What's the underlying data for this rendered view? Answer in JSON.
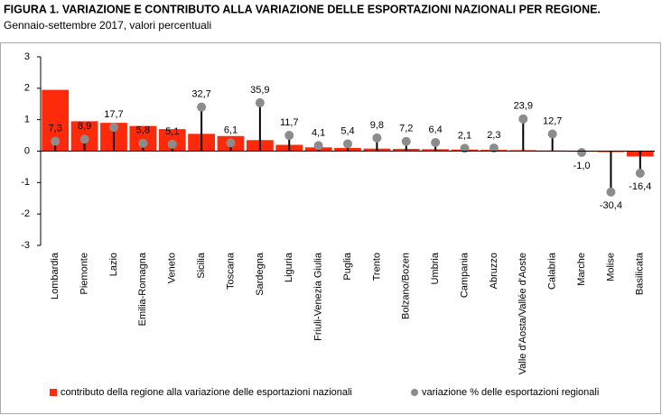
{
  "chart_data": {
    "type": "bar",
    "title": "FIGURA 1. VARIAZIONE E CONTRIBUTO ALLA VARIAZIONE DELLE ESPORTAZIONI NAZIONALI PER REGIONE.",
    "subtitle": "Gennaio-settembre 2017, valori percentuali",
    "categories": [
      "Lombardia",
      "Piemonte",
      "Lazio",
      "Emilia-Romagna",
      "Veneto",
      "Sicilia",
      "Toscana",
      "Sardegna",
      "Liguria",
      "Friuli-Venezia Giulia",
      "Puglia",
      "Trento",
      "Bolzano/Bozen",
      "Umbria",
      "Campania",
      "Abruzzo",
      "Valle d'Aosta/Vallée d'Aoste",
      "Calabria",
      "Marche",
      "Molise",
      "Basilicata"
    ],
    "series": [
      {
        "name": "contributo della regione alla variazione delle esportazioni nazionali",
        "type": "bar",
        "color": "#ff2a0a",
        "values": [
          1.95,
          0.95,
          0.9,
          0.8,
          0.7,
          0.55,
          0.48,
          0.35,
          0.2,
          0.12,
          0.1,
          0.08,
          0.07,
          0.06,
          0.05,
          0.04,
          0.03,
          0.02,
          -0.02,
          -0.03,
          -0.17
        ]
      },
      {
        "name": "variazione % delle esportazioni regionali",
        "type": "dot",
        "axis": "y2",
        "color": "#8c8c8c",
        "values": [
          7.3,
          8.9,
          17.7,
          5.8,
          5.1,
          32.7,
          6.1,
          35.9,
          11.7,
          4.1,
          5.4,
          9.8,
          7.2,
          6.4,
          2.1,
          2.3,
          23.9,
          12.7,
          -1.0,
          -30.4,
          -16.4
        ],
        "value_labels": [
          "7,3",
          "8,9",
          "17,7",
          "5,8",
          "5,1",
          "32,7",
          "6,1",
          "35,9",
          "11,7",
          "4,1",
          "5,4",
          "9,8",
          "7,2",
          "6,4",
          "2,1",
          "2,3",
          "23,9",
          "12,7",
          "-1,0",
          "-30,4",
          "-16,4"
        ]
      }
    ],
    "ylim": [
      -3,
      3
    ],
    "yticks": [
      -3,
      -2,
      -1,
      0,
      1,
      2,
      3
    ],
    "y2lim": [
      -70,
      70
    ],
    "legend": "bottom"
  }
}
